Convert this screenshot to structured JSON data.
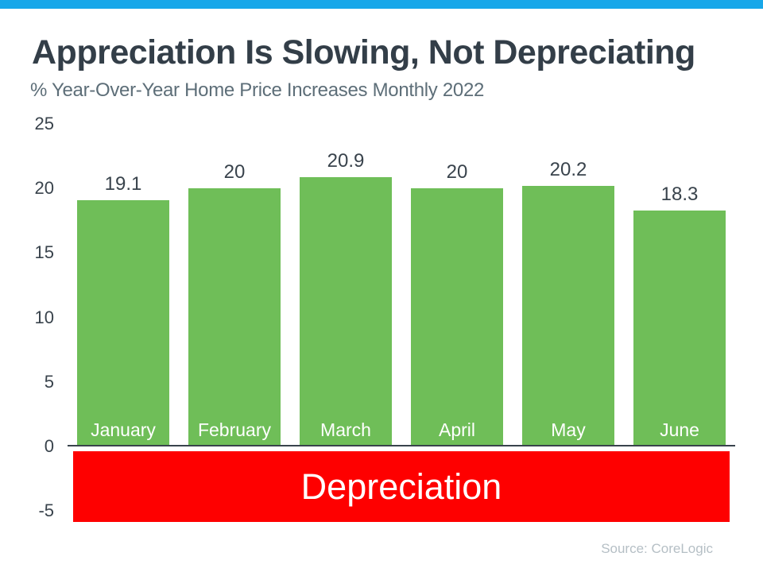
{
  "slide": {
    "title": "Appreciation Is Slowing, Not Depreciating",
    "subtitle": "% Year-Over-Year Home Price Increases Monthly 2022",
    "depreciation_label": "Depreciation",
    "source": "Source: CoreLogic"
  },
  "colors": {
    "top_bar": "#18A7E9",
    "bar_fill": "#6FBE58",
    "depreciation_band": "#FE0000",
    "title_text": "#333E48",
    "subtitle_text": "#5D6E78",
    "axis_text": "#39434C",
    "bar_label_text": "#FFFFFF",
    "source_text": "#B5BFC5"
  },
  "chart_data": {
    "type": "bar",
    "title": "Appreciation Is Slowing, Not Depreciating",
    "subtitle": "% Year-Over-Year Home Price Increases Monthly 2022",
    "categories": [
      "January",
      "February",
      "March",
      "April",
      "May",
      "June"
    ],
    "values": [
      19.1,
      20,
      20.9,
      20,
      20.2,
      18.3
    ],
    "value_labels": [
      "19.1",
      "20",
      "20.9",
      "20",
      "20.2",
      "18.3"
    ],
    "xlabel": "",
    "ylabel": "",
    "yticks": [
      "25",
      "20",
      "15",
      "10",
      "5",
      "0",
      "-5"
    ],
    "ytick_values": [
      25,
      20,
      15,
      10,
      5,
      0,
      -5
    ],
    "ylim": [
      -5.9,
      25
    ],
    "grid": false,
    "legend": "none",
    "annotation": "Depreciation",
    "annotation_region": "below zero line",
    "source": "Source: CoreLogic"
  }
}
